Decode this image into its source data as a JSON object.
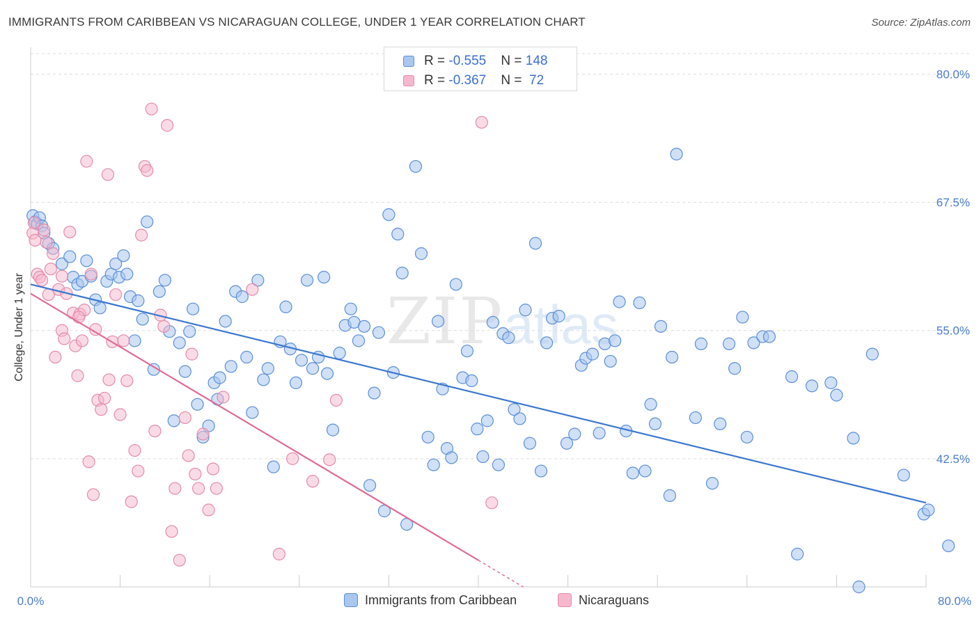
{
  "title": "IMMIGRANTS FROM CARIBBEAN VS NICARAGUAN COLLEGE, UNDER 1 YEAR CORRELATION CHART",
  "source": "Source: ZipAtlas.com",
  "watermark": {
    "zip": "ZIP",
    "atlas": "atlas"
  },
  "legend": {
    "rows": [
      {
        "r_label": "R = ",
        "r_value": "-0.555",
        "n_label": "N = ",
        "n_value": "148"
      },
      {
        "r_label": "R = ",
        "r_value": "-0.367",
        "n_label": "N = ",
        "n_value": " 72"
      }
    ]
  },
  "colors": {
    "blue_fill": "#a9c7ef",
    "blue_stroke": "#5b8fd6",
    "blue_line": "#3a77d0",
    "pink_fill": "#f6b8cc",
    "pink_stroke": "#e58aa9",
    "pink_line": "#e06a98",
    "tick": "#4a7cc9",
    "grid": "#dcdcdc"
  },
  "chart_data": {
    "type": "scatter",
    "title": "IMMIGRANTS FROM CARIBBEAN VS NICARAGUAN COLLEGE, UNDER 1 YEAR CORRELATION CHART",
    "xlabel": "",
    "ylabel": "College, Under 1 year",
    "xlim": [
      0,
      80
    ],
    "ylim": [
      30,
      82
    ],
    "x_tick_labels": [
      "0.0%",
      "80.0%"
    ],
    "y_tick_labels": [
      "80.0%",
      "67.5%",
      "55.0%",
      "42.5%"
    ],
    "y_ticks": [
      80,
      67.5,
      55,
      42.5
    ],
    "grid": true,
    "legend_position": "top-center",
    "series": [
      {
        "name": "Immigrants from Caribbean",
        "color": "blue",
        "trend": [
          [
            0,
            59.5
          ],
          [
            80,
            38.2
          ]
        ],
        "points": [
          [
            0.2,
            66.2
          ],
          [
            0.4,
            65.6
          ],
          [
            0.6,
            65.4
          ],
          [
            0.8,
            66.0
          ],
          [
            1.0,
            65.2
          ],
          [
            1.2,
            64.5
          ],
          [
            1.6,
            63.5
          ],
          [
            2.0,
            63.0
          ],
          [
            2.8,
            61.5
          ],
          [
            3.5,
            62.2
          ],
          [
            3.8,
            60.2
          ],
          [
            4.2,
            59.5
          ],
          [
            4.6,
            59.8
          ],
          [
            5.0,
            61.8
          ],
          [
            5.4,
            60.3
          ],
          [
            5.8,
            58.0
          ],
          [
            6.2,
            57.2
          ],
          [
            6.8,
            59.8
          ],
          [
            7.2,
            60.5
          ],
          [
            7.6,
            61.5
          ],
          [
            7.9,
            60.2
          ],
          [
            8.3,
            62.3
          ],
          [
            8.6,
            60.5
          ],
          [
            8.9,
            58.3
          ],
          [
            9.3,
            54.0
          ],
          [
            9.6,
            57.9
          ],
          [
            10.0,
            56.1
          ],
          [
            10.4,
            65.6
          ],
          [
            11.0,
            51.2
          ],
          [
            11.5,
            58.8
          ],
          [
            12.0,
            59.9
          ],
          [
            12.4,
            54.9
          ],
          [
            12.8,
            46.2
          ],
          [
            13.3,
            53.8
          ],
          [
            13.8,
            51.0
          ],
          [
            14.2,
            54.9
          ],
          [
            14.5,
            57.1
          ],
          [
            14.9,
            47.8
          ],
          [
            15.4,
            44.6
          ],
          [
            15.9,
            45.7
          ],
          [
            16.4,
            49.9
          ],
          [
            16.9,
            50.4
          ],
          [
            17.4,
            55.9
          ],
          [
            17.9,
            51.5
          ],
          [
            18.3,
            58.8
          ],
          [
            18.9,
            58.3
          ],
          [
            19.3,
            52.4
          ],
          [
            19.8,
            47.0
          ],
          [
            20.3,
            59.9
          ],
          [
            20.8,
            50.2
          ],
          [
            21.2,
            51.3
          ],
          [
            21.7,
            41.7
          ],
          [
            22.3,
            53.9
          ],
          [
            22.8,
            57.3
          ],
          [
            23.2,
            53.2
          ],
          [
            23.7,
            49.9
          ],
          [
            24.2,
            52.1
          ],
          [
            24.7,
            59.9
          ],
          [
            25.2,
            51.3
          ],
          [
            25.7,
            52.4
          ],
          [
            26.2,
            60.2
          ],
          [
            26.5,
            50.8
          ],
          [
            27.0,
            45.3
          ],
          [
            27.6,
            52.8
          ],
          [
            28.1,
            55.5
          ],
          [
            28.6,
            57.1
          ],
          [
            28.9,
            55.8
          ],
          [
            29.3,
            54.0
          ],
          [
            29.8,
            55.4
          ],
          [
            30.3,
            39.9
          ],
          [
            30.7,
            48.9
          ],
          [
            31.1,
            54.8
          ],
          [
            31.6,
            37.4
          ],
          [
            32.0,
            66.3
          ],
          [
            32.4,
            50.9
          ],
          [
            32.8,
            64.4
          ],
          [
            33.2,
            60.6
          ],
          [
            33.6,
            36.1
          ],
          [
            34.4,
            71.0
          ],
          [
            34.9,
            62.5
          ],
          [
            35.5,
            44.6
          ],
          [
            36.0,
            41.9
          ],
          [
            36.4,
            55.9
          ],
          [
            36.8,
            49.3
          ],
          [
            37.2,
            43.5
          ],
          [
            37.6,
            42.6
          ],
          [
            38.0,
            59.5
          ],
          [
            38.6,
            50.4
          ],
          [
            39.0,
            53.0
          ],
          [
            39.4,
            50.1
          ],
          [
            39.9,
            45.4
          ],
          [
            40.4,
            42.7
          ],
          [
            40.8,
            46.2
          ],
          [
            41.3,
            55.8
          ],
          [
            41.8,
            41.9
          ],
          [
            42.2,
            54.7
          ],
          [
            42.7,
            54.3
          ],
          [
            43.2,
            47.3
          ],
          [
            43.7,
            46.4
          ],
          [
            44.2,
            57.0
          ],
          [
            44.6,
            44.0
          ],
          [
            45.1,
            63.5
          ],
          [
            45.6,
            41.3
          ],
          [
            46.1,
            53.8
          ],
          [
            46.6,
            56.2
          ],
          [
            47.2,
            56.4
          ],
          [
            47.9,
            44.0
          ],
          [
            48.6,
            44.9
          ],
          [
            49.2,
            51.6
          ],
          [
            49.6,
            52.3
          ],
          [
            50.2,
            52.7
          ],
          [
            50.8,
            45.0
          ],
          [
            51.3,
            53.7
          ],
          [
            51.8,
            52.0
          ],
          [
            52.2,
            54.0
          ],
          [
            52.6,
            57.8
          ],
          [
            53.2,
            45.2
          ],
          [
            53.8,
            41.1
          ],
          [
            54.4,
            57.7
          ],
          [
            54.9,
            41.3
          ],
          [
            55.4,
            47.8
          ],
          [
            55.8,
            45.9
          ],
          [
            56.3,
            55.4
          ],
          [
            57.1,
            38.9
          ],
          [
            57.3,
            52.4
          ],
          [
            57.7,
            72.2
          ],
          [
            59.4,
            46.5
          ],
          [
            59.9,
            53.7
          ],
          [
            60.9,
            40.1
          ],
          [
            61.6,
            45.9
          ],
          [
            62.4,
            53.7
          ],
          [
            62.9,
            51.3
          ],
          [
            63.6,
            56.3
          ],
          [
            64.0,
            44.6
          ],
          [
            64.6,
            53.8
          ],
          [
            65.4,
            54.4
          ],
          [
            66.0,
            54.4
          ],
          [
            68.0,
            50.5
          ],
          [
            68.5,
            33.2
          ],
          [
            69.8,
            49.6
          ],
          [
            71.5,
            49.9
          ],
          [
            72.0,
            48.7
          ],
          [
            73.5,
            44.5
          ],
          [
            75.2,
            52.7
          ],
          [
            78.0,
            40.9
          ],
          [
            79.8,
            37.1
          ],
          [
            80.2,
            37.5
          ],
          [
            82.0,
            34.0
          ],
          [
            74.0,
            30.0
          ],
          [
            16.7,
            48.3
          ]
        ]
      },
      {
        "name": "Nicaraguans",
        "color": "pink",
        "trend": [
          [
            0,
            58.6
          ],
          [
            40,
            32.6
          ]
        ],
        "trend_dashed": [
          [
            40,
            32.6
          ],
          [
            44,
            30
          ]
        ],
        "points": [
          [
            0.2,
            64.5
          ],
          [
            0.3,
            65.5
          ],
          [
            0.4,
            63.8
          ],
          [
            0.6,
            60.5
          ],
          [
            0.8,
            60.2
          ],
          [
            1.0,
            59.9
          ],
          [
            1.2,
            64.8
          ],
          [
            1.4,
            63.6
          ],
          [
            1.6,
            58.5
          ],
          [
            1.8,
            61.0
          ],
          [
            2.0,
            62.5
          ],
          [
            2.2,
            52.4
          ],
          [
            2.5,
            59.0
          ],
          [
            2.8,
            55.0
          ],
          [
            3.0,
            54.2
          ],
          [
            3.2,
            58.6
          ],
          [
            3.5,
            64.6
          ],
          [
            3.8,
            56.7
          ],
          [
            4.0,
            53.5
          ],
          [
            4.2,
            50.6
          ],
          [
            4.4,
            56.6
          ],
          [
            4.6,
            54.0
          ],
          [
            4.8,
            57.0
          ],
          [
            5.0,
            71.5
          ],
          [
            5.2,
            42.2
          ],
          [
            5.4,
            60.5
          ],
          [
            5.6,
            39.0
          ],
          [
            5.8,
            55.1
          ],
          [
            6.0,
            48.2
          ],
          [
            6.3,
            47.3
          ],
          [
            6.6,
            48.4
          ],
          [
            7.0,
            50.2
          ],
          [
            7.3,
            53.9
          ],
          [
            7.6,
            58.5
          ],
          [
            8.0,
            46.8
          ],
          [
            8.3,
            54.0
          ],
          [
            8.6,
            50.1
          ],
          [
            9.0,
            38.3
          ],
          [
            9.3,
            43.3
          ],
          [
            9.6,
            41.3
          ],
          [
            9.9,
            64.3
          ],
          [
            10.2,
            71.0
          ],
          [
            10.4,
            70.6
          ],
          [
            10.8,
            76.6
          ],
          [
            11.1,
            45.2
          ],
          [
            11.6,
            56.5
          ],
          [
            11.9,
            55.4
          ],
          [
            12.2,
            75.0
          ],
          [
            12.6,
            35.4
          ],
          [
            12.9,
            39.6
          ],
          [
            13.3,
            32.6
          ],
          [
            13.8,
            46.5
          ],
          [
            14.1,
            42.8
          ],
          [
            14.4,
            52.7
          ],
          [
            14.7,
            41.0
          ],
          [
            15.0,
            39.6
          ],
          [
            15.4,
            44.9
          ],
          [
            15.9,
            37.5
          ],
          [
            16.3,
            41.5
          ],
          [
            16.6,
            39.6
          ],
          [
            17.2,
            48.5
          ],
          [
            19.8,
            59.0
          ],
          [
            4.3,
            56.3
          ],
          [
            22.2,
            33.2
          ],
          [
            23.4,
            42.5
          ],
          [
            25.2,
            40.3
          ],
          [
            26.7,
            42.4
          ],
          [
            27.3,
            48.2
          ],
          [
            40.3,
            75.3
          ],
          [
            41.2,
            38.2
          ],
          [
            6.9,
            70.2
          ],
          [
            2.8,
            60.3
          ]
        ]
      }
    ]
  },
  "bottom_legend": [
    {
      "label": "Immigrants from Caribbean"
    },
    {
      "label": "Nicaraguans"
    }
  ]
}
